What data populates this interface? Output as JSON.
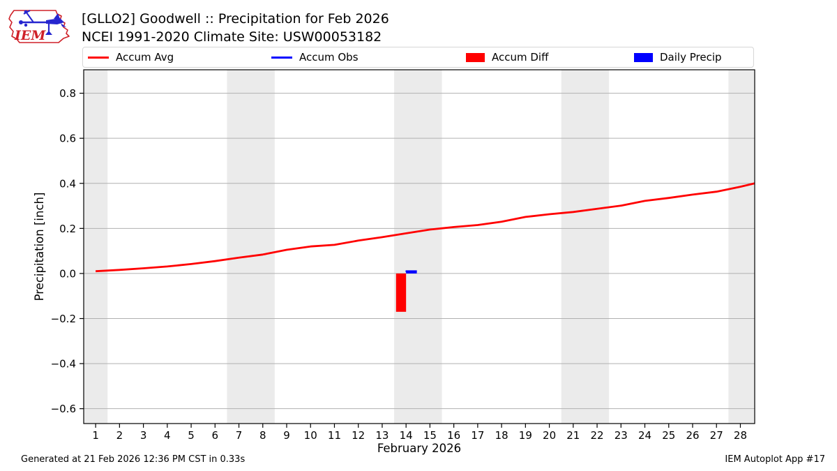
{
  "header": {
    "title_line1": "[GLLO2] Goodwell :: Precipitation for Feb 2026",
    "title_line2": "NCEI 1991-2020 Climate Site: USW00053182",
    "logo_text": "IEM"
  },
  "legend": {
    "items": [
      {
        "label": "Accum Avg",
        "swatch": "line",
        "color": "#ff0000"
      },
      {
        "label": "Accum Obs",
        "swatch": "line",
        "color": "#0000ff"
      },
      {
        "label": "Accum Diff",
        "swatch": "bar",
        "color": "#ff0000"
      },
      {
        "label": "Daily Precip",
        "swatch": "bar",
        "color": "#0000ff"
      }
    ]
  },
  "footer": {
    "left": "Generated at 21 Feb 2026 12:36 PM CST in 0.33s",
    "right": "IEM Autoplot App #17"
  },
  "chart_data": {
    "type": "line+bar",
    "title": "[GLLO2] Goodwell :: Precipitation for Feb 2026",
    "subtitle": "NCEI 1991-2020 Climate Site: USW00053182",
    "xlabel": "February 2026",
    "ylabel": "Precipitation [inch]",
    "xlim": [
      0.5,
      28.6
    ],
    "ylim": [
      -0.666,
      0.904
    ],
    "x_ticks": [
      1,
      2,
      3,
      4,
      5,
      6,
      7,
      8,
      9,
      10,
      11,
      12,
      13,
      14,
      15,
      16,
      17,
      18,
      19,
      20,
      21,
      22,
      23,
      24,
      25,
      26,
      27,
      28
    ],
    "y_ticks": [
      0.8,
      0.6,
      0.4,
      0.2,
      0.0,
      -0.2,
      -0.4,
      -0.6
    ],
    "grid": true,
    "grid_color": "#b0b0b0",
    "band_color": "#ebebeb",
    "legend_position": "top",
    "weekend_bands": [
      [
        0.5,
        1.5
      ],
      [
        6.5,
        8.5
      ],
      [
        13.5,
        15.5
      ],
      [
        20.5,
        22.5
      ],
      [
        27.5,
        28.6
      ]
    ],
    "series": [
      {
        "name": "Accum Avg",
        "kind": "line",
        "color": "#ff0000",
        "width": 2.8,
        "x": [
          1,
          2,
          3,
          4,
          5,
          6,
          7,
          8,
          9,
          10,
          11,
          12,
          13,
          14,
          15,
          16,
          17,
          18,
          19,
          20,
          21,
          22,
          23,
          24,
          25,
          26,
          27,
          28,
          28.6
        ],
        "y": [
          0.01,
          0.016,
          0.023,
          0.031,
          0.042,
          0.055,
          0.07,
          0.084,
          0.105,
          0.12,
          0.127,
          0.146,
          0.161,
          0.178,
          0.195,
          0.206,
          0.215,
          0.23,
          0.251,
          0.263,
          0.273,
          0.287,
          0.301,
          0.322,
          0.335,
          0.35,
          0.363,
          0.385,
          0.4
        ]
      },
      {
        "name": "Accum Obs",
        "kind": "line",
        "color": "#0000ff",
        "width": 2.5,
        "x": [
          13.98,
          14.45
        ],
        "y": [
          0.01,
          0.01
        ]
      },
      {
        "name": "Accum Diff",
        "kind": "bar",
        "color": "#ff0000",
        "bars": [
          {
            "day": 14,
            "x0": 13.58,
            "x1": 14.0,
            "y0": 0,
            "y1": -0.17
          }
        ]
      },
      {
        "name": "Daily Precip",
        "kind": "bar",
        "color": "#0000ff",
        "bars": [
          {
            "day": 14,
            "x0": 14.0,
            "x1": 14.45,
            "y0": 0,
            "y1": 0.014
          }
        ]
      }
    ]
  }
}
